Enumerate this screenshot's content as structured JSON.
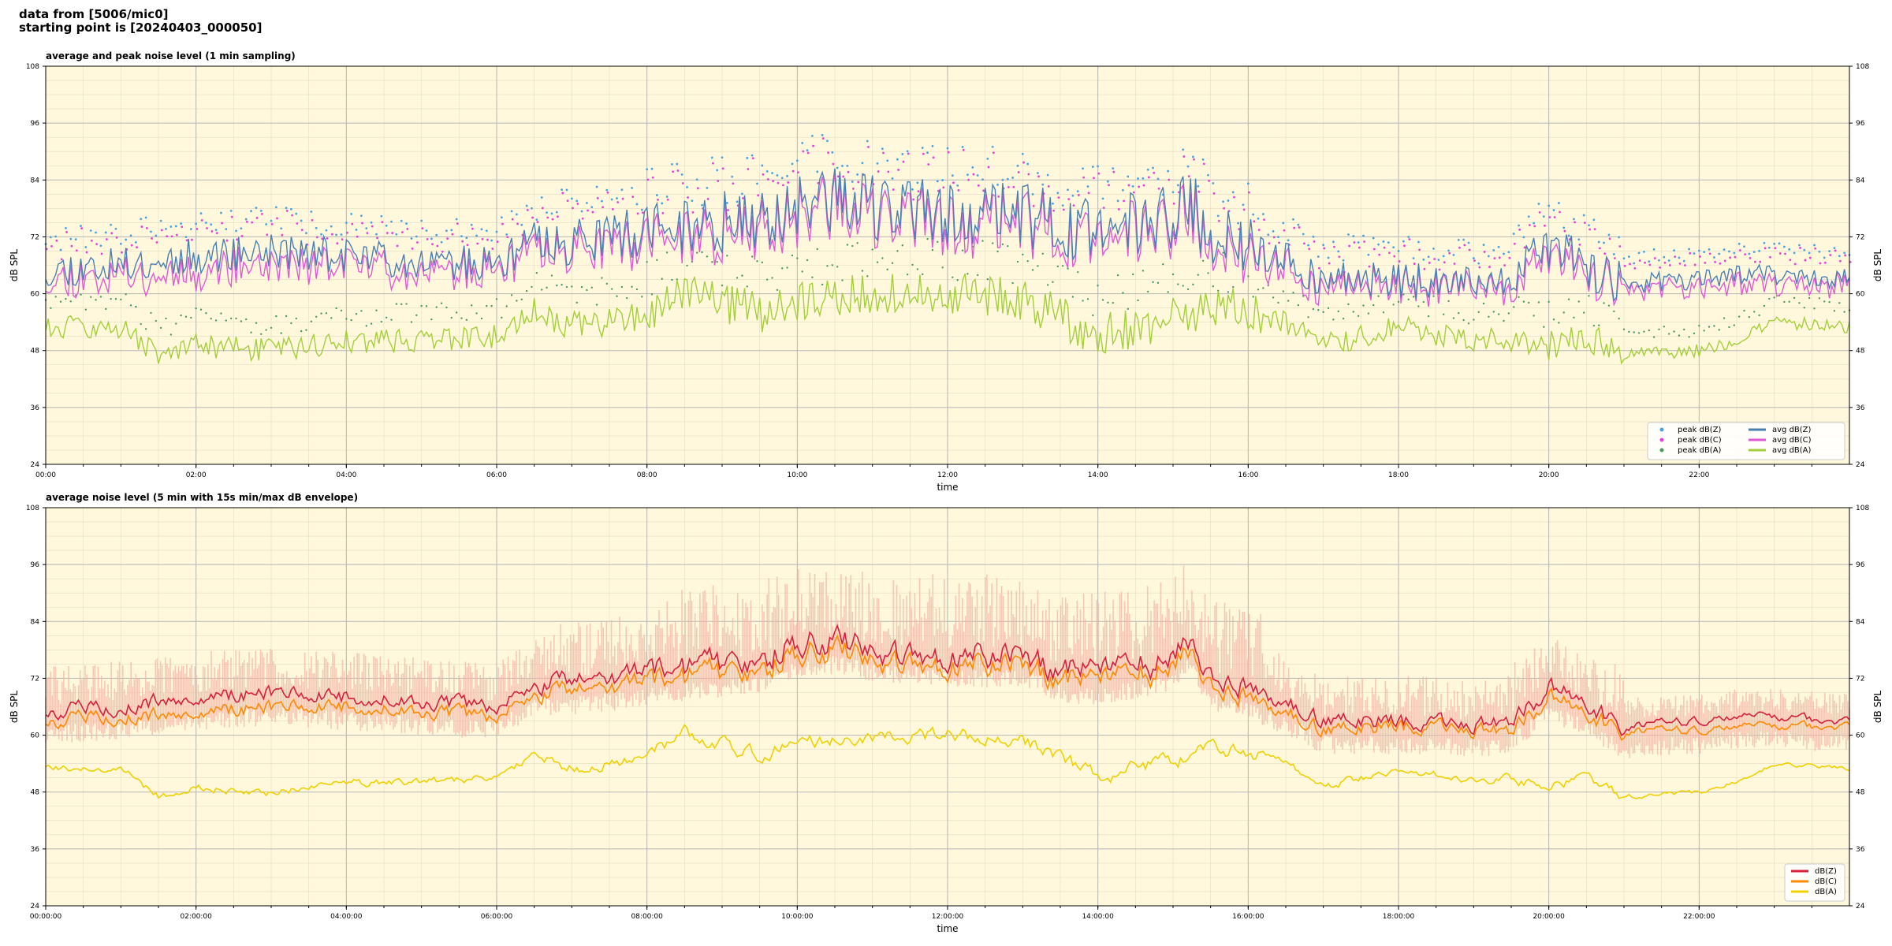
{
  "header": {
    "line1": "data from [5006/mic0]",
    "line2": "starting point is [20240403_000050]"
  },
  "chart_data": [
    {
      "type": "line",
      "title": "average and peak noise level (1 min sampling)",
      "xlabel": "time",
      "ylabel": "dB SPL",
      "ylim": [
        24,
        108
      ],
      "yticks": [
        24,
        36,
        48,
        60,
        72,
        84,
        96,
        108
      ],
      "xlim_hours": [
        0,
        24
      ],
      "xticks": [
        "00:00",
        "02:00",
        "04:00",
        "06:00",
        "08:00",
        "10:00",
        "12:00",
        "14:00",
        "16:00",
        "18:00",
        "20:00",
        "22:00"
      ],
      "grid": true,
      "legend_position": "bottom-right",
      "colors": {
        "avg_z": "#4a7fb5",
        "avg_c": "#e05ad6",
        "avg_a": "#a3cf3a",
        "peak_z": "#4aa3e0",
        "peak_c": "#e840d8",
        "peak_a": "#4a9a60"
      },
      "legend": [
        {
          "label": "peak dB(Z)",
          "kind": "dot",
          "color": "#4aa3e0"
        },
        {
          "label": "peak dB(C)",
          "kind": "dot",
          "color": "#e840d8"
        },
        {
          "label": "peak dB(A)",
          "kind": "dot",
          "color": "#4a9a60"
        },
        {
          "label": "avg dB(Z)",
          "kind": "line",
          "color": "#4a7fb5"
        },
        {
          "label": "avg dB(C)",
          "kind": "line",
          "color": "#e05ad6"
        },
        {
          "label": "avg dB(A)",
          "kind": "line",
          "color": "#a3cf3a"
        }
      ],
      "trend_hours": [
        0,
        1,
        1.5,
        2,
        3,
        4,
        5,
        6,
        6.5,
        7,
        8,
        8.5,
        9,
        9.5,
        10,
        10.5,
        11,
        12,
        13,
        13.5,
        14,
        15,
        15.2,
        15.5,
        16,
        16.5,
        17,
        18,
        19,
        19.5,
        20,
        20.5,
        21,
        22,
        22.5,
        23,
        24
      ],
      "series": [
        {
          "name": "avg dB(Z)",
          "values": [
            65,
            66,
            67,
            68,
            69,
            68,
            67,
            66,
            71,
            71,
            73,
            74,
            75,
            76,
            79,
            80,
            78,
            77,
            77,
            74,
            73,
            76,
            80,
            72,
            70,
            67,
            63,
            63,
            62,
            63,
            70,
            66,
            62,
            63,
            64,
            64,
            63
          ]
        },
        {
          "name": "avg dB(C)",
          "values": [
            63,
            64,
            64,
            65,
            66,
            66,
            65,
            64,
            69,
            69,
            71,
            72,
            73,
            74,
            77,
            78,
            76,
            75,
            75,
            72,
            71,
            74,
            78,
            70,
            68,
            65,
            61,
            62,
            61,
            61,
            68,
            64,
            61,
            61,
            62,
            62,
            62
          ]
        },
        {
          "name": "avg dB(A)",
          "values": [
            53,
            53,
            47,
            49,
            48,
            50,
            50,
            51,
            56,
            53,
            55,
            61,
            58,
            56,
            58,
            59,
            60,
            60,
            59,
            55,
            51,
            55,
            55,
            58,
            56,
            54,
            49,
            53,
            50,
            51,
            49,
            51,
            47,
            48,
            50,
            54,
            53
          ]
        }
      ]
    },
    {
      "type": "area",
      "title": "average noise level (5 min with 15s min/max dB envelope)",
      "xlabel": "time",
      "ylabel": "dB SPL",
      "ylim": [
        24,
        108
      ],
      "yticks": [
        24,
        36,
        48,
        60,
        72,
        84,
        96,
        108
      ],
      "xlim_hours": [
        0,
        24
      ],
      "xticks": [
        "00:00:00",
        "02:00:00",
        "04:00:00",
        "06:00:00",
        "08:00:00",
        "10:00:00",
        "12:00:00",
        "14:00:00",
        "16:00:00",
        "18:00:00",
        "20:00:00",
        "22:00:00"
      ],
      "grid": true,
      "legend_position": "bottom-right",
      "colors": {
        "z": "#d81f3e",
        "c": "#ff8a00",
        "a": "#f0d000",
        "envelope": "#f2b8a8"
      },
      "legend": [
        {
          "label": "dB(Z)",
          "kind": "line",
          "color": "#d81f3e"
        },
        {
          "label": "dB(C)",
          "kind": "line",
          "color": "#ff8a00"
        },
        {
          "label": "dB(A)",
          "kind": "line",
          "color": "#f0d000"
        }
      ],
      "trend_hours": [
        0,
        1,
        1.5,
        2,
        3,
        4,
        5,
        6,
        6.5,
        7,
        8,
        8.5,
        9,
        9.5,
        10,
        10.5,
        11,
        12,
        13,
        13.5,
        14,
        15,
        15.2,
        15.5,
        16,
        16.5,
        17,
        18,
        19,
        19.5,
        20,
        20.5,
        21,
        22,
        22.5,
        23,
        24
      ],
      "series": [
        {
          "name": "dB(Z)",
          "values": [
            65,
            66,
            67,
            68,
            69,
            68,
            67,
            66,
            71,
            71,
            73,
            74,
            75,
            76,
            79,
            80,
            78,
            77,
            77,
            74,
            73,
            76,
            80,
            72,
            70,
            67,
            63,
            63,
            62,
            63,
            70,
            66,
            62,
            63,
            64,
            64,
            63
          ]
        },
        {
          "name": "dB(C)",
          "values": [
            63,
            64,
            64,
            65,
            66,
            66,
            65,
            64,
            69,
            69,
            71,
            72,
            73,
            74,
            77,
            78,
            76,
            75,
            75,
            72,
            71,
            74,
            78,
            70,
            68,
            65,
            61,
            62,
            61,
            61,
            68,
            64,
            61,
            61,
            62,
            62,
            62
          ]
        },
        {
          "name": "dB(A)",
          "values": [
            53,
            53,
            47,
            49,
            48,
            50,
            50,
            51,
            56,
            53,
            55,
            61,
            58,
            56,
            58,
            59,
            60,
            60,
            59,
            55,
            51,
            55,
            55,
            58,
            56,
            54,
            49,
            53,
            50,
            51,
            49,
            51,
            47,
            48,
            50,
            54,
            53
          ]
        }
      ]
    }
  ]
}
